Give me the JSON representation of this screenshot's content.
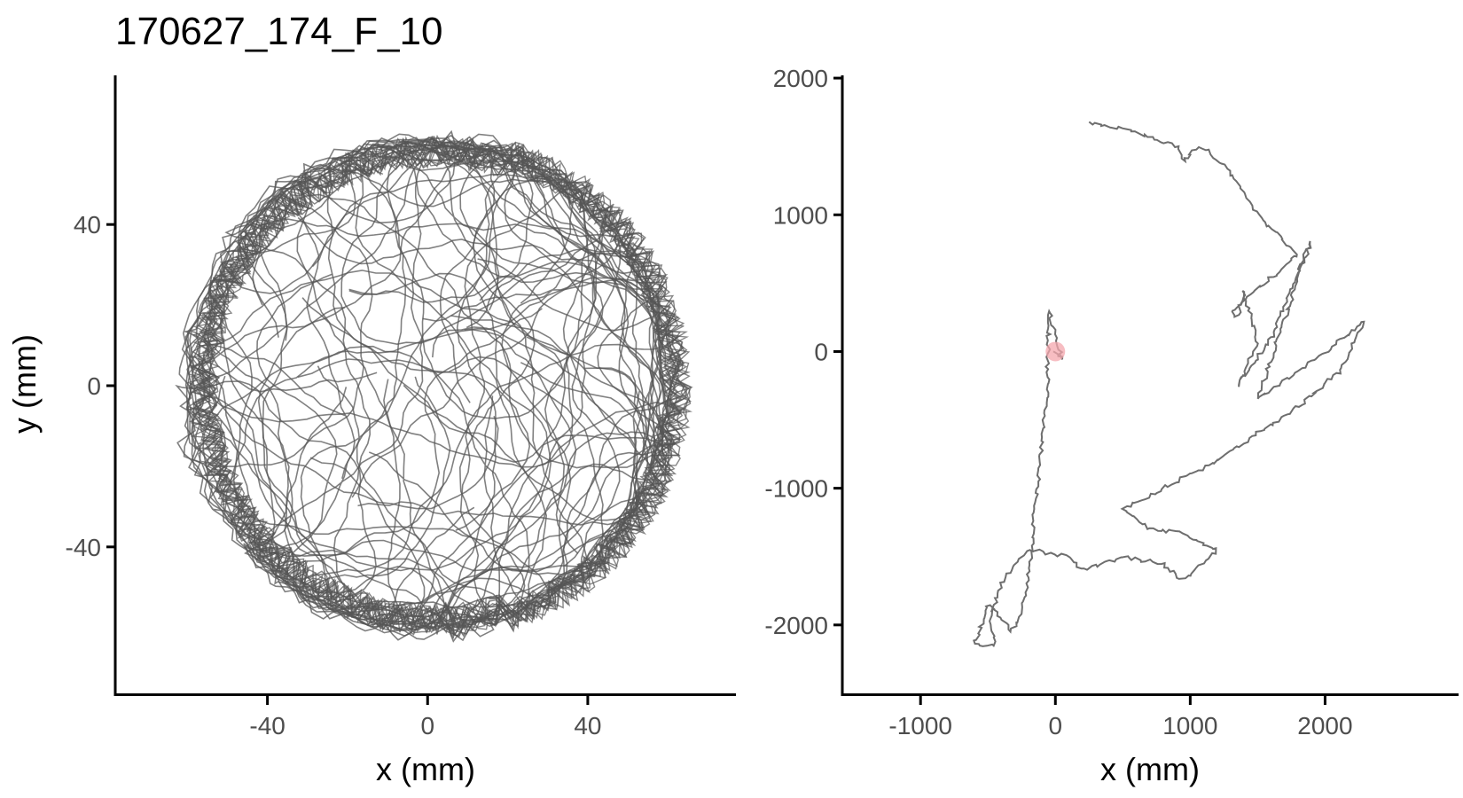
{
  "title": "170627_174_F_10",
  "colors": {
    "track": "#555555",
    "start_marker": "#f4a7ad",
    "axis": "#000000",
    "tick_text": "#4d4d4d"
  },
  "chart_data": [
    {
      "type": "line",
      "panel": "arena",
      "xlabel": "x (mm)",
      "ylabel": "y (mm)",
      "xlim": [
        -78,
        77
      ],
      "ylim": [
        -77,
        77
      ],
      "x_ticks": [
        -40,
        0,
        40
      ],
      "y_ticks": [
        -40,
        0,
        40
      ],
      "x_tick_labels": [
        "-40",
        "0",
        "40"
      ],
      "y_tick_labels": [
        "-40",
        "0",
        "40"
      ],
      "trajectory": {
        "description_of_data": "dense random-walk trajectory inside a circular arena of radius ~62 mm",
        "arena_center": [
          0,
          0
        ],
        "arena_radius": 62,
        "x": [
          0,
          20,
          45,
          58,
          62,
          50,
          25,
          -5,
          -35,
          -55,
          -62,
          -52,
          -30,
          -2,
          28,
          50,
          61,
          55,
          35,
          5,
          -25,
          -48,
          -60,
          -45,
          -15,
          15,
          40,
          56,
          48,
          20
        ],
        "y": [
          0,
          -25,
          -30,
          -12,
          15,
          38,
          55,
          60,
          50,
          28,
          -5,
          -35,
          -55,
          -62,
          -55,
          -35,
          -5,
          25,
          50,
          58,
          52,
          30,
          0,
          -30,
          -48,
          -50,
          -38,
          -10,
          20,
          35
        ]
      }
    },
    {
      "type": "line",
      "panel": "path",
      "xlabel": "x (mm)",
      "ylabel": "",
      "xlim": [
        -1580,
        2990
      ],
      "ylim": [
        -2520,
        2020
      ],
      "x_ticks": [
        -1000,
        0,
        1000,
        2000
      ],
      "y_ticks": [
        -2000,
        -1000,
        0,
        1000,
        2000
      ],
      "x_tick_labels": [
        "-1000",
        "0",
        "1000",
        "2000"
      ],
      "y_tick_labels": [
        "-2000",
        "-1000",
        "0",
        "1000",
        "2000"
      ],
      "start_point": [
        0,
        0
      ],
      "x": [
        0,
        50,
        -50,
        -60,
        -100,
        -150,
        -180,
        -220,
        -260,
        -330,
        -400,
        -500,
        -600,
        -450,
        -480,
        -380,
        -200,
        100,
        200,
        500,
        800,
        900,
        1000,
        1200,
        900,
        700,
        500,
        800,
        1200,
        1500,
        1800,
        2100,
        2300,
        1800,
        1500,
        1900,
        1600,
        1350,
        1500,
        1400,
        1350,
        1300,
        1800,
        1500,
        1300,
        1100,
        1000,
        950,
        900,
        600,
        400,
        250
      ],
      "y": [
        0,
        -50,
        300,
        -250,
        -700,
        -1100,
        -1450,
        -1750,
        -1950,
        -2050,
        -1950,
        -1850,
        -2150,
        -2150,
        -1950,
        -1650,
        -1450,
        -1500,
        -1600,
        -1500,
        -1550,
        -1650,
        -1650,
        -1450,
        -1320,
        -1300,
        -1150,
        -1000,
        -800,
        -600,
        -400,
        -150,
        220,
        -150,
        -350,
        820,
        100,
        -250,
        50,
        450,
        250,
        300,
        700,
        1000,
        1300,
        1500,
        1450,
        1400,
        1500,
        1600,
        1650,
        1680
      ]
    }
  ]
}
